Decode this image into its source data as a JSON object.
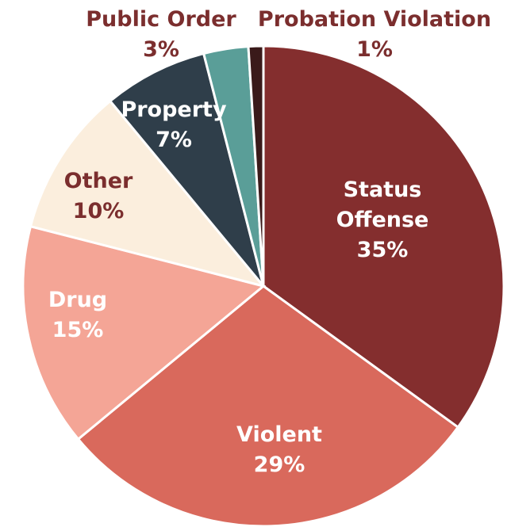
{
  "chart_data": {
    "type": "pie",
    "categories": [
      "Status Offense",
      "Violent",
      "Drug",
      "Other",
      "Property",
      "Public Order",
      "Probation Violation"
    ],
    "values": [
      35,
      29,
      15,
      10,
      7,
      3,
      1
    ],
    "value_labels": [
      "35%",
      "29%",
      "15%",
      "10%",
      "7%",
      "3%",
      "1%"
    ],
    "colors": [
      "#842e2e",
      "#d9695c",
      "#f4a596",
      "#fbeedd",
      "#2f3e4a",
      "#5a9e98",
      "#3a1a1a"
    ]
  }
}
